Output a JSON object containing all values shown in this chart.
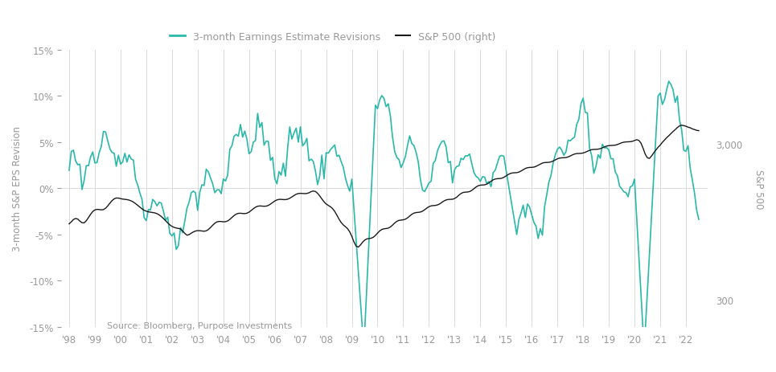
{
  "legend_labels": [
    "3-month Earnings Estimate Revisions",
    "S&P 500 (right)"
  ],
  "teal_color": "#2ab8aa",
  "black_color": "#1a1a1a",
  "ylabel_left": "3-month S&P EPS Revision",
  "ylabel_right": "S&P 500",
  "source_text": "Source: Bloomberg, Purpose Investments",
  "background_color": "#ffffff",
  "grid_color": "#d4d4d4",
  "font_color": "#999999",
  "ylim_left": [
    -15,
    15
  ],
  "sp500_ticks": [
    300,
    3000
  ],
  "sp500_ylim": [
    200,
    12000
  ]
}
